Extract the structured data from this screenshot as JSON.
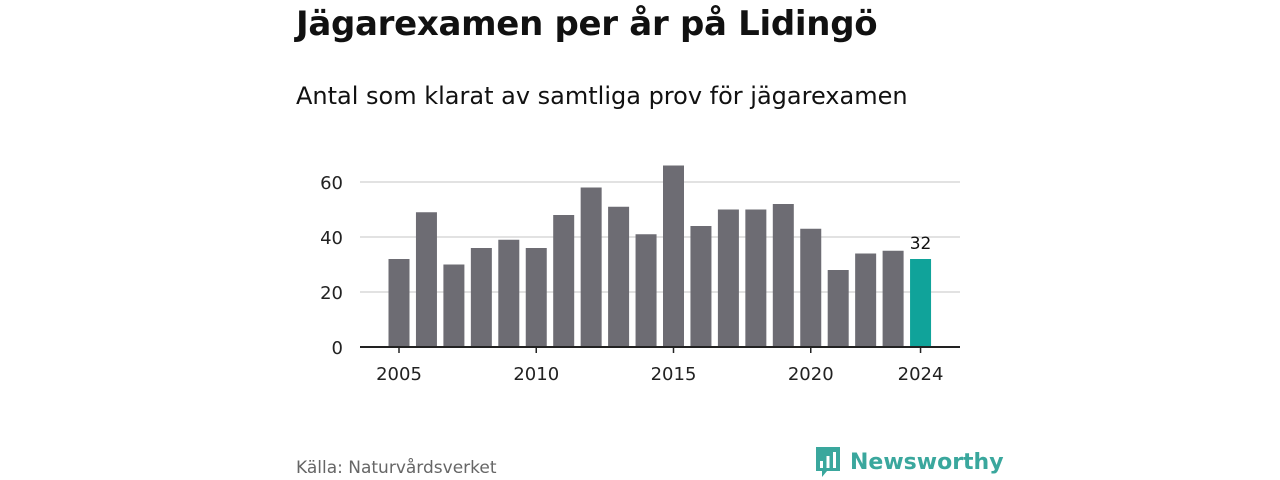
{
  "title": "Jägarexamen per år på Lidingö",
  "subtitle": "Antal som klarat av samtliga prov för jägarexamen",
  "source": "Källa: Naturvårdsverket",
  "brand": {
    "name": "Newsworthy",
    "icon": "bar-chart-speech-bubble-icon",
    "color": "#3aa79d"
  },
  "colors": {
    "bar": "#6d6c73",
    "highlight": "#10a39a",
    "grid": "#d9d9d9",
    "axis": "#222222"
  },
  "chart_data": {
    "type": "bar",
    "title": "Jägarexamen per år på Lidingö",
    "subtitle": "Antal som klarat av samtliga prov för jägarexamen",
    "categories": [
      2005,
      2006,
      2007,
      2008,
      2009,
      2010,
      2011,
      2012,
      2013,
      2014,
      2015,
      2016,
      2017,
      2018,
      2019,
      2020,
      2021,
      2022,
      2023,
      2024
    ],
    "values": [
      32,
      49,
      30,
      36,
      39,
      36,
      48,
      58,
      51,
      41,
      66,
      44,
      50,
      50,
      52,
      43,
      28,
      34,
      35,
      32
    ],
    "highlight_index": 19,
    "x_ticks": [
      2005,
      2010,
      2015,
      2020,
      2024
    ],
    "y_ticks": [
      0,
      20,
      40,
      60
    ],
    "ylim": [
      0,
      70
    ],
    "grid": true,
    "data_labels": [
      {
        "category": 2024,
        "text": "32"
      }
    ],
    "xlabel": "",
    "ylabel": ""
  }
}
